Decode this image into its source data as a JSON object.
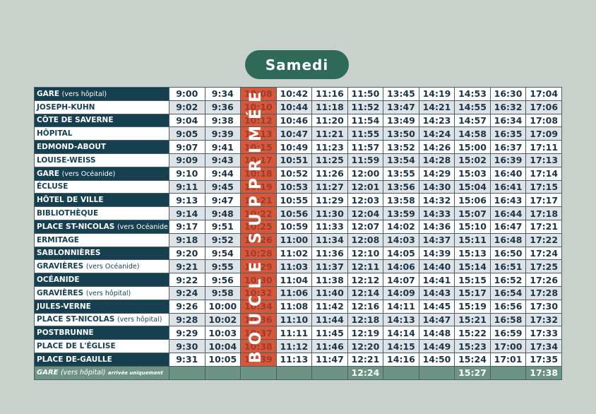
{
  "title": "Samedi",
  "cancelled_label": "BOUCLE SUPPRIMÉE",
  "times": [
    {
      "stop": "GARE",
      "note": "(vers hôpital)",
      "dark": true,
      "t": [
        "9:00",
        "9:34",
        "10:08",
        "10:42",
        "11:16",
        "11:50",
        "13:45",
        "14:19",
        "14:53",
        "16:30",
        "17:04"
      ]
    },
    {
      "stop": "JOSEPH-KUHN",
      "note": "",
      "dark": false,
      "t": [
        "9:02",
        "9:36",
        "10:10",
        "10:44",
        "11:18",
        "11:52",
        "13:47",
        "14:21",
        "14:55",
        "16:32",
        "17:06"
      ]
    },
    {
      "stop": "CÔTE DE SAVERNE",
      "note": "",
      "dark": true,
      "t": [
        "9:04",
        "9:38",
        "10:12",
        "10:46",
        "11:20",
        "11:54",
        "13:49",
        "14:23",
        "14:57",
        "16:34",
        "17:08"
      ]
    },
    {
      "stop": "HÔPITAL",
      "note": "",
      "dark": false,
      "t": [
        "9:05",
        "9:39",
        "10:13",
        "10:47",
        "11:21",
        "11:55",
        "13:50",
        "14:24",
        "14:58",
        "16:35",
        "17:09"
      ]
    },
    {
      "stop": "EDMOND-ABOUT",
      "note": "",
      "dark": true,
      "t": [
        "9:07",
        "9:41",
        "10:15",
        "10:49",
        "11:23",
        "11:57",
        "13:52",
        "14:26",
        "15:00",
        "16:37",
        "17:11"
      ]
    },
    {
      "stop": "LOUISE-WEISS",
      "note": "",
      "dark": false,
      "t": [
        "9:09",
        "9:43",
        "10:17",
        "10:51",
        "11:25",
        "11:59",
        "13:54",
        "14:28",
        "15:02",
        "16:39",
        "17:13"
      ]
    },
    {
      "stop": "GARE",
      "note": "(vers Océanide)",
      "dark": true,
      "t": [
        "9:10",
        "9:44",
        "10:18",
        "10:52",
        "11:26",
        "12:00",
        "13:55",
        "14:29",
        "15:03",
        "16:40",
        "17:14"
      ]
    },
    {
      "stop": "ÉCLUSE",
      "note": "",
      "dark": false,
      "t": [
        "9:11",
        "9:45",
        "10:19",
        "10:53",
        "11:27",
        "12:01",
        "13:56",
        "14:30",
        "15:04",
        "16:41",
        "17:15"
      ]
    },
    {
      "stop": "HÔTEL DE VILLE",
      "note": "",
      "dark": true,
      "t": [
        "9:13",
        "9:47",
        "10:21",
        "10:55",
        "11:29",
        "12:03",
        "13:58",
        "14:32",
        "15:06",
        "16:43",
        "17:17"
      ]
    },
    {
      "stop": "BIBLIOTHÈQUE",
      "note": "",
      "dark": false,
      "t": [
        "9:14",
        "9:48",
        "10:22",
        "10:56",
        "11:30",
        "12:04",
        "13:59",
        "14:33",
        "15:07",
        "16:44",
        "17:18"
      ]
    },
    {
      "stop": "PLACE ST-NICOLAS",
      "note": "(vers Océanide)",
      "dark": true,
      "t": [
        "9:17",
        "9:51",
        "10:25",
        "10:59",
        "11:33",
        "12:07",
        "14:02",
        "14:36",
        "15:10",
        "16:47",
        "17:21"
      ]
    },
    {
      "stop": "ERMITAGE",
      "note": "",
      "dark": false,
      "t": [
        "9:18",
        "9:52",
        "10:26",
        "11:00",
        "11:34",
        "12:08",
        "14:03",
        "14:37",
        "15:11",
        "16:48",
        "17:22"
      ]
    },
    {
      "stop": "SABLONNIÈRES",
      "note": "",
      "dark": true,
      "t": [
        "9:20",
        "9:54",
        "10:28",
        "11:02",
        "11:36",
        "12:10",
        "14:05",
        "14:39",
        "15:13",
        "16:50",
        "17:24"
      ]
    },
    {
      "stop": "GRAVIÈRES",
      "note": "(vers Océanide)",
      "dark": false,
      "t": [
        "9:21",
        "9:55",
        "10:29",
        "11:03",
        "11:37",
        "12:11",
        "14:06",
        "14:40",
        "15:14",
        "16:51",
        "17:25"
      ]
    },
    {
      "stop": "OCÉANIDE",
      "note": "",
      "dark": true,
      "t": [
        "9:22",
        "9:56",
        "10:30",
        "11:04",
        "11:38",
        "12:12",
        "14:07",
        "14:41",
        "15:15",
        "16:52",
        "17:26"
      ]
    },
    {
      "stop": "GRAVIÈRES",
      "note": "(vers hôpital)",
      "dark": false,
      "t": [
        "9:24",
        "9:58",
        "10:32",
        "11:06",
        "11:40",
        "12:14",
        "14:09",
        "14:43",
        "15:17",
        "16:54",
        "17:28"
      ]
    },
    {
      "stop": "JULES-VERNE",
      "note": "",
      "dark": true,
      "t": [
        "9:26",
        "10:00",
        "10:34",
        "11:08",
        "11:42",
        "12:16",
        "14:11",
        "14:45",
        "15:19",
        "16:56",
        "17:30"
      ]
    },
    {
      "stop": "PLACE ST-NICOLAS",
      "note": "(vers hôpital)",
      "dark": false,
      "t": [
        "9:28",
        "10:02",
        "10:36",
        "11:10",
        "11:44",
        "12:18",
        "14:13",
        "14:47",
        "15:21",
        "16:58",
        "17:32"
      ]
    },
    {
      "stop": "POSTBRUNNE",
      "note": "",
      "dark": true,
      "t": [
        "9:29",
        "10:03",
        "10:37",
        "11:11",
        "11:45",
        "12:19",
        "14:14",
        "14:48",
        "15:22",
        "16:59",
        "17:33"
      ]
    },
    {
      "stop": "PLACE DE L'ÉGLISE",
      "note": "",
      "dark": false,
      "t": [
        "9:30",
        "10:04",
        "10:38",
        "11:12",
        "11:46",
        "12:20",
        "14:15",
        "14:49",
        "15:23",
        "17:00",
        "17:34"
      ]
    },
    {
      "stop": "PLACE DE-GAULLE",
      "note": "",
      "dark": true,
      "t": [
        "9:31",
        "10:05",
        "10:39",
        "11:13",
        "11:47",
        "12:21",
        "14:16",
        "14:50",
        "15:24",
        "17:01",
        "17:35"
      ]
    }
  ],
  "arrival": {
    "stop": "GARE",
    "note": "(vers hôpital)",
    "suffix": "arrivée uniquement",
    "t": [
      "",
      "",
      "",
      "",
      "",
      "12:24",
      "",
      "",
      "15:27",
      "",
      "17:38"
    ]
  }
}
